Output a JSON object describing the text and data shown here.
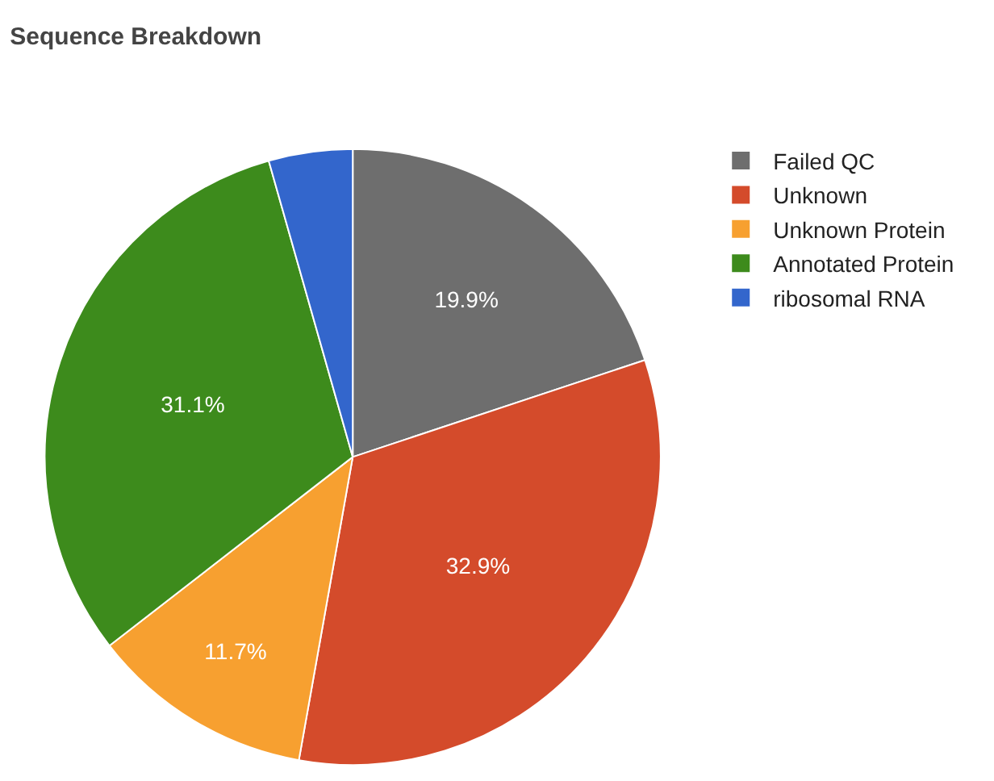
{
  "chart_data": {
    "type": "pie",
    "title": "Sequence Breakdown",
    "categories": [
      "Failed QC",
      "Unknown",
      "Unknown Protein",
      "Annotated Protein",
      "ribosomal RNA"
    ],
    "values": [
      19.9,
      32.9,
      11.7,
      31.1,
      4.4
    ],
    "value_labels": [
      "19.9%",
      "32.9%",
      "11.7%",
      "31.1%",
      null
    ],
    "colors": [
      "#6e6e6e",
      "#d44b2b",
      "#f7a030",
      "#3d8b1c",
      "#3366cc"
    ],
    "legend": "top right"
  }
}
